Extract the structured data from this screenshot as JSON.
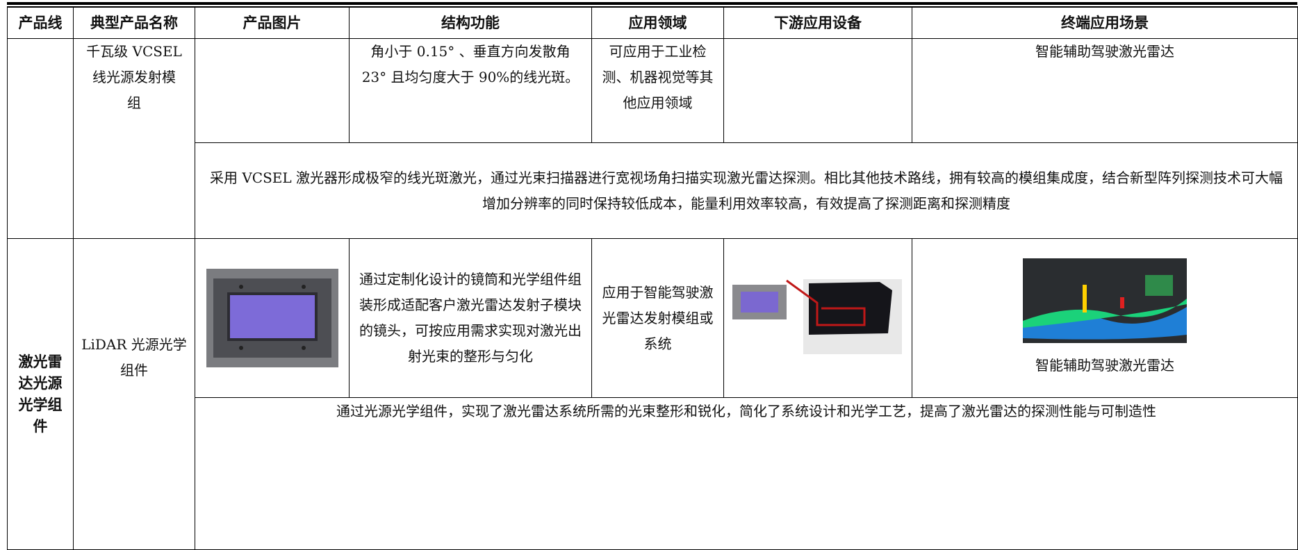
{
  "table": {
    "headers": [
      "产品线",
      "典型产品名称",
      "产品图片",
      "结构功能",
      "应用领域",
      "下游应用设备",
      "终端应用场景"
    ],
    "rows": [
      {
        "product_name": "千瓦级 VCSEL 线光源发射模组",
        "structure": "角小于 0.15° 、垂直方向发散角 23° 且均匀度大于 90%的线光斑。",
        "application": "可应用于工业检测、机器视觉等其他应用领域",
        "scenario": "智能辅助驾驶激光雷达",
        "description": "采用 VCSEL 激光器形成极窄的线光斑激光，通过光束扫描器进行宽视场角扫描实现激光雷达探测。相比其他技术路线，拥有较高的模组集成度，结合新型阵列探测技术可大幅增加分辨率的同时保持较低成本，能量利用效率较高，有效提高了探测距离和探测精度"
      },
      {
        "product_line": "激光雷达光源光学组件",
        "product_name": "LiDAR 光源光学组件",
        "structure": "通过定制化设计的镜筒和光学组件组装形成适配客户激光雷达发射子模块的镜头，可按应用需求实现对激光出射光束的整形与匀化",
        "application": "应用于智能驾驶激光雷达发射模组或系统",
        "scenario": "智能辅助驾驶激光雷达",
        "description": "通过光源光学组件，实现了激光雷达系统所需的光束整形和锐化，简化了系统设计和光学工艺，提高了激光雷达的探测性能与可制造性"
      }
    ]
  }
}
